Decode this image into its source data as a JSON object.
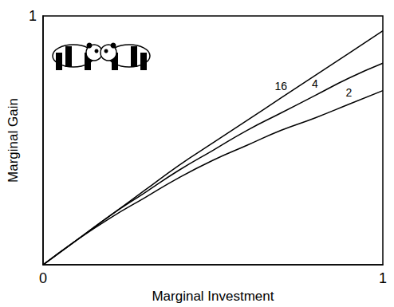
{
  "chart_data": {
    "type": "line",
    "xlabel": "Marginal Investment",
    "ylabel": "Marginal Gain",
    "x": [
      0,
      0.1,
      0.2,
      0.3,
      0.4,
      0.5,
      0.6,
      0.7,
      0.8,
      0.9,
      1
    ],
    "series": [
      {
        "name": "16",
        "color": "#000000",
        "values": [
          0,
          0.1,
          0.2,
          0.3,
          0.4,
          0.49,
          0.58,
          0.67,
          0.76,
          0.85,
          0.94
        ]
      },
      {
        "name": "4",
        "color": "#000000",
        "values": [
          0,
          0.1,
          0.2,
          0.29,
          0.38,
          0.46,
          0.54,
          0.61,
          0.68,
          0.75,
          0.81
        ]
      },
      {
        "name": "2",
        "color": "#000000",
        "values": [
          0,
          0.1,
          0.19,
          0.27,
          0.35,
          0.42,
          0.48,
          0.54,
          0.59,
          0.645,
          0.7
        ]
      }
    ],
    "xlim": [
      0,
      1
    ],
    "ylim": [
      0,
      1
    ],
    "xticks": [
      0,
      1
    ],
    "yticks": [
      1
    ],
    "grid": false
  }
}
